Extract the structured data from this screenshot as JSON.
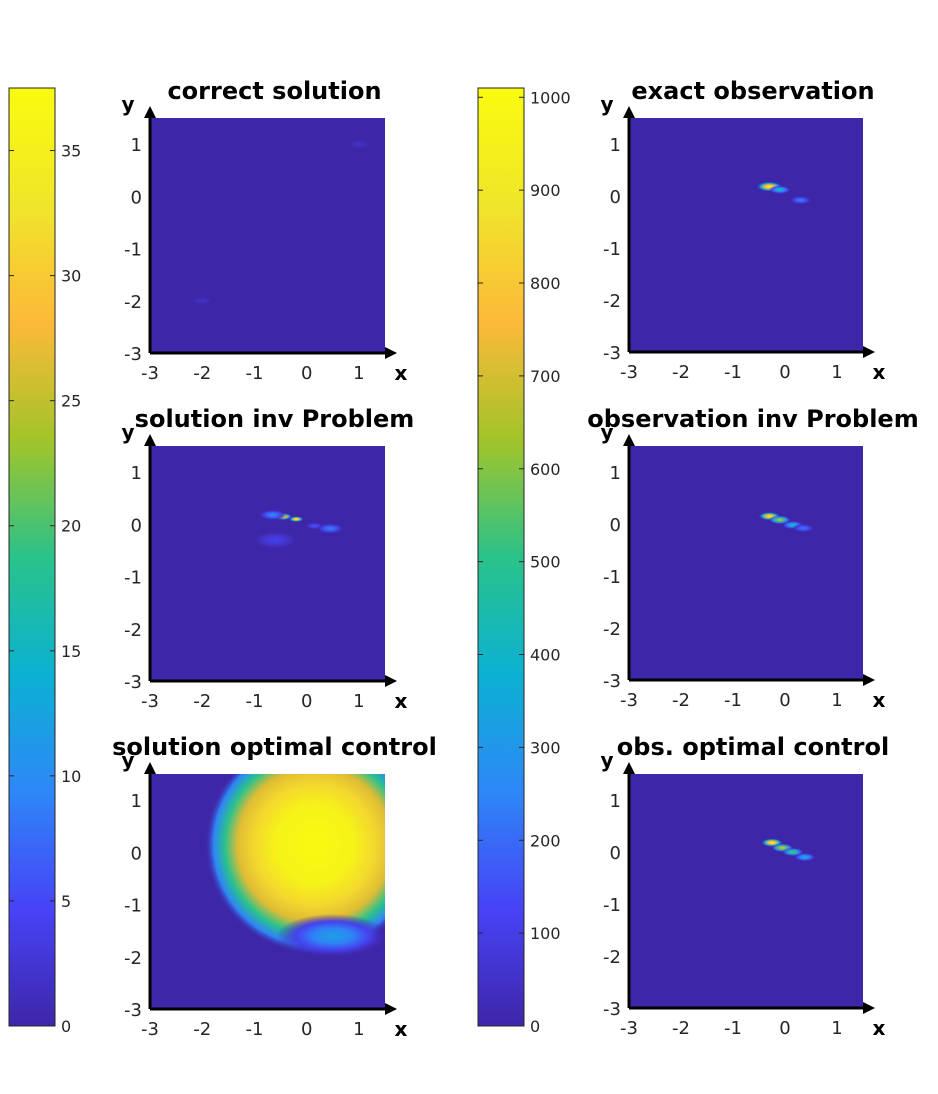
{
  "colors": {
    "background": "#3e27a0",
    "axis": "#000000",
    "colormap": [
      "#3e26a8",
      "#4743f6",
      "#2e87f7",
      "#0cb1d2",
      "#2ac28a",
      "#a2c429",
      "#fcb939",
      "#f0e52a",
      "#f9fb0e"
    ]
  },
  "chart_data": [
    {
      "type": "heatmap",
      "title": "correct solution",
      "xlabel": "x",
      "ylabel": "y",
      "xlim": [
        -3,
        1.5
      ],
      "ylim": [
        -3,
        1.5
      ],
      "xticks": [
        "-3",
        "-2",
        "-1",
        "0",
        "1"
      ],
      "yticks": [
        "-3",
        "-2",
        "-1",
        "0",
        "1"
      ],
      "clim": [
        0,
        37.5
      ],
      "blobs": [
        {
          "x": 1.0,
          "y": 1.0,
          "r": 0.12,
          "value": 2.0
        },
        {
          "x": -2.0,
          "y": -2.0,
          "r": 0.12,
          "value": 2.0
        }
      ]
    },
    {
      "type": "heatmap",
      "title": "exact observation",
      "xlabel": "x",
      "ylabel": "y",
      "xlim": [
        -3,
        1.5
      ],
      "ylim": [
        -3,
        1.5
      ],
      "xticks": [
        "-3",
        "-2",
        "-1",
        "0",
        "1"
      ],
      "yticks": [
        "-3",
        "-2",
        "-1",
        "0",
        "1"
      ],
      "clim": [
        0,
        1010
      ],
      "blobs": [
        {
          "x": -0.3,
          "y": 0.18,
          "r": 0.14,
          "value": 1000
        },
        {
          "x": -0.1,
          "y": 0.12,
          "r": 0.12,
          "value": 420
        },
        {
          "x": 0.3,
          "y": -0.08,
          "r": 0.12,
          "value": 240
        }
      ]
    },
    {
      "type": "heatmap",
      "title": "solution inv Problem",
      "xlabel": "x",
      "ylabel": "y",
      "xlim": [
        -3,
        1.5
      ],
      "ylim": [
        -3,
        1.5
      ],
      "xticks": [
        "-3",
        "-2",
        "-1",
        "0",
        "1"
      ],
      "yticks": [
        "-3",
        "-2",
        "-1",
        "0",
        "1"
      ],
      "clim": [
        0,
        37.5
      ],
      "blobs": [
        {
          "x": -0.45,
          "y": 0.15,
          "r": 0.1,
          "value": 34
        },
        {
          "x": -0.2,
          "y": 0.1,
          "r": 0.08,
          "value": 37
        },
        {
          "x": -0.65,
          "y": 0.18,
          "r": 0.15,
          "value": 10
        },
        {
          "x": -0.6,
          "y": -0.3,
          "r": 0.25,
          "value": 4
        },
        {
          "x": 0.15,
          "y": -0.03,
          "r": 0.1,
          "value": 6
        },
        {
          "x": 0.45,
          "y": -0.08,
          "r": 0.15,
          "value": 9
        }
      ]
    },
    {
      "type": "heatmap",
      "title": "observation inv Problem",
      "xlabel": "x",
      "ylabel": "y",
      "xlim": [
        -3,
        1.5
      ],
      "ylim": [
        -3,
        1.5
      ],
      "xticks": [
        "-3",
        "-2",
        "-1",
        "0",
        "1"
      ],
      "yticks": [
        "-3",
        "-2",
        "-1",
        "0",
        "1"
      ],
      "clim": [
        0,
        1010
      ],
      "blobs": [
        {
          "x": -0.3,
          "y": 0.15,
          "r": 0.12,
          "value": 950
        },
        {
          "x": -0.1,
          "y": 0.08,
          "r": 0.12,
          "value": 700
        },
        {
          "x": 0.15,
          "y": -0.02,
          "r": 0.12,
          "value": 420
        },
        {
          "x": 0.35,
          "y": -0.08,
          "r": 0.12,
          "value": 220
        }
      ]
    },
    {
      "type": "heatmap",
      "title": "solution optimal control",
      "xlabel": "x",
      "ylabel": "y",
      "xlim": [
        -3,
        1.5
      ],
      "ylim": [
        -3,
        1.5
      ],
      "xticks": [
        "-3",
        "-2",
        "-1",
        "0",
        "1"
      ],
      "yticks": [
        "-3",
        "-2",
        "-1",
        "0",
        "1"
      ],
      "clim": [
        0,
        37.5
      ],
      "blobs": [
        {
          "x": 0.15,
          "y": 0.15,
          "r": 2.1,
          "value": 37,
          "profile": "plateau"
        },
        {
          "x": 0.5,
          "y": -1.6,
          "r": 0.6,
          "value": 12
        }
      ]
    },
    {
      "type": "heatmap",
      "title": "obs. optimal control",
      "xlabel": "x",
      "ylabel": "y",
      "xlim": [
        -3,
        1.5
      ],
      "ylim": [
        -3,
        1.5
      ],
      "xticks": [
        "-3",
        "-2",
        "-1",
        "0",
        "1"
      ],
      "yticks": [
        "-3",
        "-2",
        "-1",
        "0",
        "1"
      ],
      "clim": [
        0,
        1010
      ],
      "blobs": [
        {
          "x": -0.25,
          "y": 0.18,
          "r": 0.12,
          "value": 1000
        },
        {
          "x": -0.05,
          "y": 0.08,
          "r": 0.12,
          "value": 750
        },
        {
          "x": 0.15,
          "y": 0.0,
          "r": 0.12,
          "value": 560
        },
        {
          "x": 0.38,
          "y": -0.1,
          "r": 0.12,
          "value": 380
        }
      ]
    }
  ],
  "colorbars": [
    {
      "clim": [
        0,
        37.5
      ],
      "ticks": [
        "0",
        "5",
        "10",
        "15",
        "20",
        "25",
        "30",
        "35"
      ],
      "tick_values": [
        0,
        5,
        10,
        15,
        20,
        25,
        30,
        35
      ]
    },
    {
      "clim": [
        0,
        1010
      ],
      "ticks": [
        "0",
        "100",
        "200",
        "300",
        "400",
        "500",
        "600",
        "700",
        "800",
        "900",
        "1000"
      ],
      "tick_values": [
        0,
        100,
        200,
        300,
        400,
        500,
        600,
        700,
        800,
        900,
        1000
      ]
    }
  ]
}
